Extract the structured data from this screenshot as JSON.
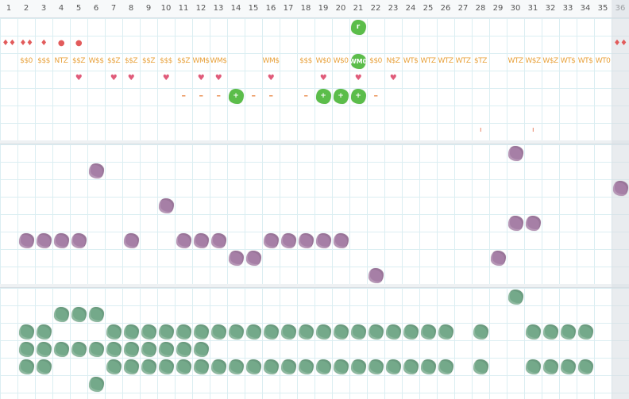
{
  "columns": [
    "1",
    "2",
    "3",
    "4",
    "5",
    "6",
    "7",
    "8",
    "9",
    "10",
    "11",
    "12",
    "13",
    "14",
    "15",
    "16",
    "17",
    "18",
    "19",
    "20",
    "21",
    "22",
    "23",
    "24",
    "25",
    "26",
    "27",
    "28",
    "29",
    "30",
    "31",
    "32",
    "33",
    "34",
    "35",
    "36"
  ],
  "colors": {
    "purple": "#a67fa6",
    "green": "#74a98a",
    "bright_green": "#5bbd4a",
    "orange": "#e8a13a",
    "red": "#e25b5b"
  },
  "top_section": {
    "row1": [
      {
        "col": 21,
        "kind": "bright",
        "symbol": "r"
      }
    ],
    "row2": [
      {
        "col": 1,
        "text": "♦♦",
        "color": "red"
      },
      {
        "col": 2,
        "text": "♦♦",
        "color": "red"
      },
      {
        "col": 3,
        "text": "♦",
        "color": "red"
      },
      {
        "col": 4,
        "text": "●",
        "color": "red"
      },
      {
        "col": 5,
        "text": "●",
        "color": "red"
      },
      {
        "col": 36,
        "text": "♦♦",
        "color": "red"
      }
    ],
    "row3": [
      {
        "col": 2,
        "text": "$$0"
      },
      {
        "col": 3,
        "text": "$$$"
      },
      {
        "col": 4,
        "text": "NTZ"
      },
      {
        "col": 5,
        "text": "$$Z"
      },
      {
        "col": 6,
        "text": "W$$"
      },
      {
        "col": 7,
        "text": "$$Z"
      },
      {
        "col": 8,
        "text": "$$Z"
      },
      {
        "col": 9,
        "text": "$$Z"
      },
      {
        "col": 10,
        "text": "$$$"
      },
      {
        "col": 11,
        "text": "$$Z"
      },
      {
        "col": 12,
        "text": "WM$"
      },
      {
        "col": 13,
        "text": "WM$"
      },
      {
        "col": 16,
        "text": "WM$"
      },
      {
        "col": 18,
        "text": "$$$"
      },
      {
        "col": 19,
        "text": "W$0"
      },
      {
        "col": 20,
        "text": "W$0"
      },
      {
        "col": 21,
        "text": "WM0",
        "bright": true
      },
      {
        "col": 22,
        "text": "$$0"
      },
      {
        "col": 23,
        "text": "N$Z"
      },
      {
        "col": 24,
        "text": "WT$"
      },
      {
        "col": 25,
        "text": "WTZ"
      },
      {
        "col": 26,
        "text": "WTZ"
      },
      {
        "col": 27,
        "text": "WTZ"
      },
      {
        "col": 28,
        "text": "$TZ"
      },
      {
        "col": 30,
        "text": "WTZ"
      },
      {
        "col": 31,
        "text": "W$Z"
      },
      {
        "col": 32,
        "text": "W$Z"
      },
      {
        "col": 33,
        "text": "WT$"
      },
      {
        "col": 34,
        "text": "WT$"
      },
      {
        "col": 35,
        "text": "WT0"
      }
    ],
    "row4_hearts": [
      5,
      7,
      8,
      10,
      12,
      13,
      16,
      19,
      21,
      23
    ],
    "row5": [
      {
        "col": 11,
        "kind": "dash"
      },
      {
        "col": 12,
        "kind": "dash"
      },
      {
        "col": 13,
        "kind": "dash"
      },
      {
        "col": 14,
        "kind": "bright",
        "symbol": "+"
      },
      {
        "col": 15,
        "kind": "dash"
      },
      {
        "col": 16,
        "kind": "dash"
      },
      {
        "col": 18,
        "kind": "dash"
      },
      {
        "col": 19,
        "kind": "bright",
        "symbol": "+"
      },
      {
        "col": 20,
        "kind": "bright",
        "symbol": "+"
      },
      {
        "col": 21,
        "kind": "bright",
        "symbol": "+"
      },
      {
        "col": 22,
        "kind": "dash"
      }
    ],
    "row7_ticks": [
      28,
      31
    ]
  },
  "middle_section": {
    "rows": [
      [
        30
      ],
      [
        6
      ],
      [
        36
      ],
      [
        10
      ],
      [
        30,
        31
      ],
      [
        2,
        3,
        4,
        5,
        8,
        11,
        12,
        13,
        16,
        17,
        18,
        19,
        20
      ],
      [
        14,
        15,
        29
      ],
      [
        22
      ]
    ]
  },
  "bottom_section": {
    "rows": [
      [
        30
      ],
      [
        4,
        5,
        6
      ],
      [
        2,
        3,
        7,
        8,
        9,
        10,
        11,
        12,
        13,
        14,
        15,
        16,
        17,
        18,
        19,
        20,
        21,
        22,
        23,
        24,
        25,
        26,
        28,
        31,
        32,
        33,
        34
      ],
      [
        2,
        3,
        4,
        5,
        6,
        7,
        8,
        9,
        10,
        11,
        12
      ],
      [
        2,
        3,
        7,
        8,
        9,
        10,
        11,
        12,
        13,
        14,
        15,
        16,
        17,
        18,
        19,
        20,
        21,
        22,
        23,
        24,
        25,
        26,
        28,
        31,
        32,
        33,
        34
      ],
      [
        6
      ]
    ]
  }
}
